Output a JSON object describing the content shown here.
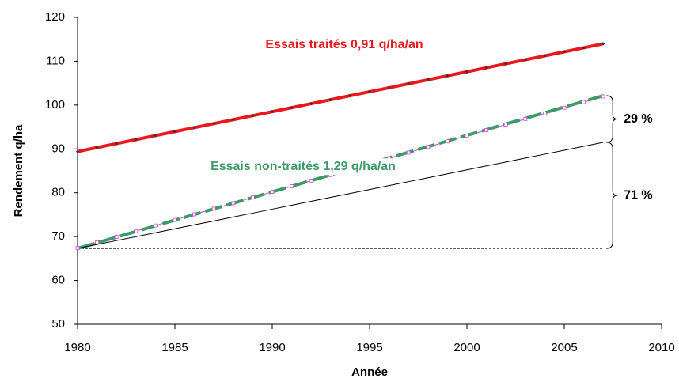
{
  "chart_data": {
    "type": "line",
    "xlabel": "Année",
    "ylabel": "Rendement q/ha",
    "x": [
      1980,
      1981,
      1982,
      1983,
      1984,
      1985,
      1986,
      1987,
      1988,
      1989,
      1990,
      1991,
      1992,
      1993,
      1994,
      1995,
      1996,
      1997,
      1998,
      1999,
      2000,
      2001,
      2002,
      2003,
      2004,
      2005,
      2006,
      2007
    ],
    "series": [
      {
        "name": "Essais traités 0,91 q/ha/an",
        "color": "#e8181c",
        "values": [
          89.4,
          90.31,
          91.22,
          92.13,
          93.04,
          93.95,
          94.86,
          95.77,
          96.68,
          97.59,
          98.5,
          99.41,
          100.32,
          101.23,
          102.14,
          103.05,
          103.96,
          104.87,
          105.78,
          106.69,
          107.6,
          108.51,
          109.42,
          110.33,
          111.24,
          112.15,
          113.06,
          113.97
        ]
      },
      {
        "color": "#e040e0",
        "values": [
          67.4,
          68.68,
          69.96,
          71.24,
          72.52,
          73.8,
          75.08,
          76.36,
          77.64,
          78.92,
          80.2,
          81.48,
          82.76,
          84.04,
          85.32,
          86.6,
          87.88,
          89.16,
          90.44,
          91.72,
          93.0,
          94.28,
          95.56,
          96.84,
          98.12,
          99.4,
          100.68,
          101.96
        ]
      },
      {
        "name": "Essais non-traités 1,29 q/ha/an",
        "color": "#3f9a6a",
        "values": [
          67.3,
          68.59,
          69.88,
          71.17,
          72.46,
          73.75,
          75.04,
          76.33,
          77.62,
          78.91,
          80.2,
          81.49,
          82.78,
          84.07,
          85.36,
          86.65,
          87.94,
          89.23,
          90.52,
          91.81,
          93.1,
          94.39,
          95.68,
          96.97,
          98.26,
          99.55,
          100.84,
          102.13
        ]
      },
      {
        "color": "#000000",
        "values": [
          67.3,
          68.2,
          69.09,
          69.99,
          70.88,
          71.78,
          72.68,
          73.57,
          74.47,
          75.36,
          76.26,
          77.16,
          78.05,
          78.95,
          79.84,
          80.74,
          81.64,
          82.53,
          83.43,
          84.32,
          85.22,
          86.12,
          87.01,
          87.91,
          88.8,
          89.7,
          90.6,
          91.49
        ]
      }
    ],
    "baseline": 67.3,
    "annotations": [
      "29 %",
      "71 %"
    ],
    "xlim": [
      1980,
      2010
    ],
    "xticks": [
      1980,
      1985,
      1990,
      1995,
      2000,
      2005,
      2010
    ],
    "ylim": [
      50,
      120
    ],
    "yticks": [
      50,
      60,
      70,
      80,
      90,
      100,
      110,
      120
    ]
  }
}
